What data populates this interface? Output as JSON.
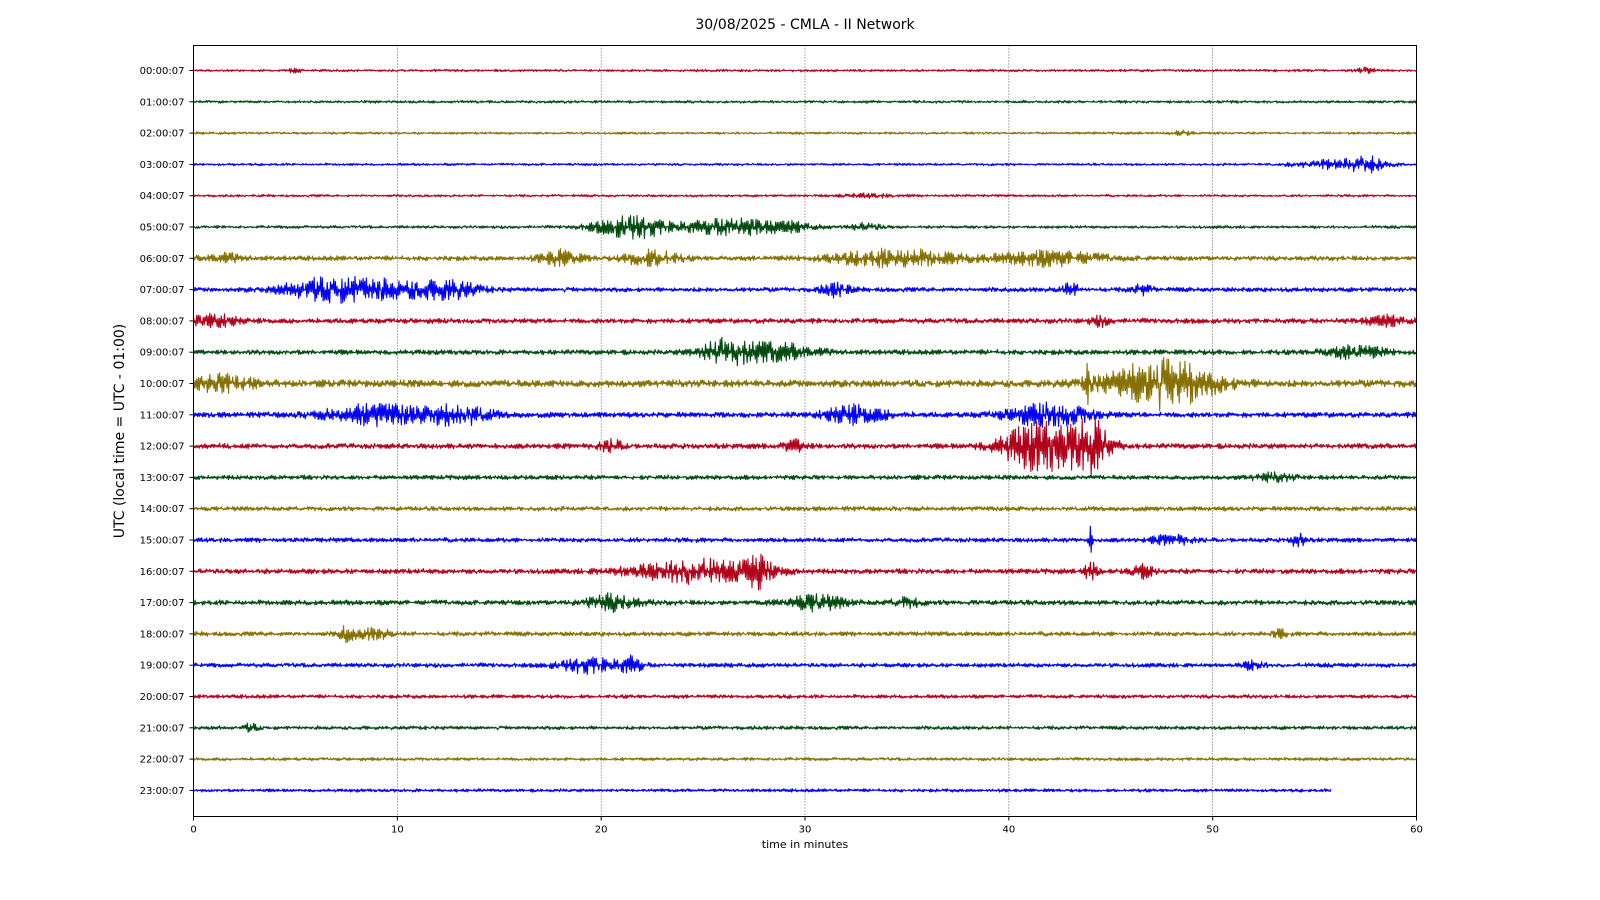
{
  "chart_data": {
    "type": "line",
    "title": "30/08/2025 - CMLA - II Network",
    "xlabel": "time in minutes",
    "ylabel": "UTC (local time = UTC - 01:00)",
    "xlim": [
      0,
      60
    ],
    "x_ticks": [
      0,
      10,
      20,
      30,
      40,
      50,
      60
    ],
    "grid": "vertical dotted lines at x ticks",
    "trace_colors": [
      "#b2001b",
      "#004b0f",
      "#867000",
      "#0000f6"
    ],
    "traces": [
      {
        "label": "00:00:07",
        "end_minute": 60,
        "base_amp": 0.07,
        "events": [
          {
            "t": 5,
            "amp": 0.2,
            "dur": 0.3
          },
          {
            "t": 57.5,
            "amp": 0.2,
            "dur": 0.5
          }
        ]
      },
      {
        "label": "01:00:07",
        "end_minute": 60,
        "base_amp": 0.08,
        "events": []
      },
      {
        "label": "02:00:07",
        "end_minute": 60,
        "base_amp": 0.07,
        "events": [
          {
            "t": 48.5,
            "amp": 0.15,
            "dur": 0.5
          }
        ]
      },
      {
        "label": "03:00:07",
        "end_minute": 60,
        "base_amp": 0.07,
        "events": [
          {
            "t": 56,
            "amp": 0.3,
            "dur": 2
          },
          {
            "t": 57.5,
            "amp": 0.45,
            "dur": 1
          }
        ]
      },
      {
        "label": "04:00:07",
        "end_minute": 60,
        "base_amp": 0.07,
        "events": [
          {
            "t": 33,
            "amp": 0.12,
            "dur": 1.5
          }
        ]
      },
      {
        "label": "05:00:07",
        "end_minute": 60,
        "base_amp": 0.09,
        "events": [
          {
            "t": 21.5,
            "amp": 0.8,
            "dur": 1.8
          },
          {
            "t": 26.5,
            "amp": 0.6,
            "dur": 2.5
          },
          {
            "t": 29.5,
            "amp": 0.2,
            "dur": 1
          },
          {
            "t": 33,
            "amp": 0.25,
            "dur": 0.8
          }
        ]
      },
      {
        "label": "06:00:07",
        "end_minute": 60,
        "base_amp": 0.16,
        "events": [
          {
            "t": 1.5,
            "amp": 0.3,
            "dur": 1
          },
          {
            "t": 18,
            "amp": 0.5,
            "dur": 1
          },
          {
            "t": 22.5,
            "amp": 0.6,
            "dur": 1.2
          },
          {
            "t": 34.5,
            "amp": 0.6,
            "dur": 3
          },
          {
            "t": 42,
            "amp": 0.5,
            "dur": 2.5
          }
        ]
      },
      {
        "label": "07:00:07",
        "end_minute": 60,
        "base_amp": 0.15,
        "events": [
          {
            "t": 6.5,
            "amp": 0.8,
            "dur": 2
          },
          {
            "t": 9.5,
            "amp": 0.6,
            "dur": 2
          },
          {
            "t": 12.5,
            "amp": 0.6,
            "dur": 1.5
          },
          {
            "t": 31.5,
            "amp": 0.45,
            "dur": 0.7
          },
          {
            "t": 43,
            "amp": 0.4,
            "dur": 0.5
          },
          {
            "t": 46.5,
            "amp": 0.3,
            "dur": 0.5
          }
        ]
      },
      {
        "label": "08:00:07",
        "end_minute": 60,
        "base_amp": 0.17,
        "events": [
          {
            "t": 1,
            "amp": 0.45,
            "dur": 1
          },
          {
            "t": 44.5,
            "amp": 0.3,
            "dur": 0.5
          },
          {
            "t": 58.5,
            "amp": 0.3,
            "dur": 1
          }
        ]
      },
      {
        "label": "09:00:07",
        "end_minute": 60,
        "base_amp": 0.17,
        "events": [
          {
            "t": 26,
            "amp": 0.8,
            "dur": 1.2
          },
          {
            "t": 28.5,
            "amp": 0.6,
            "dur": 2
          },
          {
            "t": 57,
            "amp": 0.4,
            "dur": 1.5
          }
        ]
      },
      {
        "label": "10:00:07",
        "end_minute": 60,
        "base_amp": 0.25,
        "events": [
          {
            "t": 1.5,
            "amp": 0.5,
            "dur": 1.5
          },
          {
            "t": 47.5,
            "amp": 1.7,
            "dur": 2.5
          },
          {
            "t": 43.9,
            "amp": 1.1,
            "dur": 0.2
          }
        ]
      },
      {
        "label": "11:00:07",
        "end_minute": 60,
        "base_amp": 0.18,
        "events": [
          {
            "t": 9,
            "amp": 0.7,
            "dur": 2.5
          },
          {
            "t": 13,
            "amp": 0.7,
            "dur": 1.5
          },
          {
            "t": 32.5,
            "amp": 0.6,
            "dur": 1.5
          },
          {
            "t": 42,
            "amp": 0.8,
            "dur": 2
          }
        ]
      },
      {
        "label": "12:00:07",
        "end_minute": 60,
        "base_amp": 0.18,
        "events": [
          {
            "t": 41.5,
            "amp": 1.8,
            "dur": 1.8
          },
          {
            "t": 44,
            "amp": 1.8,
            "dur": 1
          },
          {
            "t": 20.5,
            "amp": 0.4,
            "dur": 0.6
          },
          {
            "t": 29.5,
            "amp": 0.4,
            "dur": 0.6
          }
        ]
      },
      {
        "label": "13:00:07",
        "end_minute": 60,
        "base_amp": 0.15,
        "events": [
          {
            "t": 53,
            "amp": 0.25,
            "dur": 1
          }
        ]
      },
      {
        "label": "14:00:07",
        "end_minute": 60,
        "base_amp": 0.15,
        "events": []
      },
      {
        "label": "15:00:07",
        "end_minute": 60,
        "base_amp": 0.15,
        "events": [
          {
            "t": 44,
            "amp": 0.9,
            "dur": 0.1
          },
          {
            "t": 54.2,
            "amp": 0.6,
            "dur": 0.3
          },
          {
            "t": 48,
            "amp": 0.3,
            "dur": 1
          }
        ]
      },
      {
        "label": "16:00:07",
        "end_minute": 60,
        "base_amp": 0.17,
        "events": [
          {
            "t": 24.5,
            "amp": 0.8,
            "dur": 3
          },
          {
            "t": 27.8,
            "amp": 0.95,
            "dur": 0.8
          },
          {
            "t": 44,
            "amp": 0.7,
            "dur": 0.3
          },
          {
            "t": 46.5,
            "amp": 0.45,
            "dur": 0.5
          }
        ]
      },
      {
        "label": "17:00:07",
        "end_minute": 60,
        "base_amp": 0.17,
        "events": [
          {
            "t": 20.5,
            "amp": 0.55,
            "dur": 1.2
          },
          {
            "t": 30.5,
            "amp": 0.5,
            "dur": 1.5
          },
          {
            "t": 35,
            "amp": 0.3,
            "dur": 0.7
          }
        ]
      },
      {
        "label": "18:00:07",
        "end_minute": 60,
        "base_amp": 0.15,
        "events": [
          {
            "t": 7.5,
            "amp": 0.5,
            "dur": 0.4
          },
          {
            "t": 8.8,
            "amp": 0.35,
            "dur": 0.8
          },
          {
            "t": 53.3,
            "amp": 0.3,
            "dur": 0.3
          }
        ]
      },
      {
        "label": "19:00:07",
        "end_minute": 60,
        "base_amp": 0.14,
        "events": [
          {
            "t": 19.5,
            "amp": 0.55,
            "dur": 1.5
          },
          {
            "t": 21.5,
            "amp": 0.5,
            "dur": 0.5
          },
          {
            "t": 52,
            "amp": 0.35,
            "dur": 0.5
          }
        ]
      },
      {
        "label": "20:00:07",
        "end_minute": 60,
        "base_amp": 0.12,
        "events": []
      },
      {
        "label": "21:00:07",
        "end_minute": 60,
        "base_amp": 0.12,
        "events": [
          {
            "t": 2.8,
            "amp": 0.25,
            "dur": 0.4
          }
        ]
      },
      {
        "label": "22:00:07",
        "end_minute": 60,
        "base_amp": 0.1,
        "events": []
      },
      {
        "label": "23:00:07",
        "end_minute": 55.8,
        "base_amp": 0.1,
        "events": []
      }
    ]
  }
}
